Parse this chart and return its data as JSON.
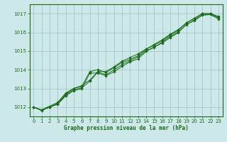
{
  "xlabel": "Graphe pression niveau de la mer (hPa)",
  "ylim": [
    1011.5,
    1017.5
  ],
  "xlim": [
    -0.5,
    23.5
  ],
  "yticks": [
    1012,
    1013,
    1014,
    1015,
    1016,
    1017
  ],
  "xticks": [
    0,
    1,
    2,
    3,
    4,
    5,
    6,
    7,
    8,
    9,
    10,
    11,
    12,
    13,
    14,
    15,
    16,
    17,
    18,
    19,
    20,
    21,
    22,
    23
  ],
  "bg_color": "#cde8e8",
  "line_color": "#1a6b1a",
  "grid_color_minor": "#b8d8d8",
  "grid_color_major": "#9cc4c4",
  "series": [
    [
      1012.0,
      1011.85,
      1012.0,
      1012.2,
      1012.7,
      1013.0,
      1013.1,
      1013.9,
      1014.0,
      1013.85,
      1014.1,
      1014.4,
      1014.55,
      1014.75,
      1015.1,
      1015.3,
      1015.55,
      1015.85,
      1016.1,
      1016.5,
      1016.75,
      1017.0,
      1017.0,
      1016.85
    ],
    [
      1012.0,
      1011.85,
      1012.05,
      1012.25,
      1012.75,
      1013.0,
      1013.15,
      1013.45,
      1013.9,
      1013.9,
      1014.15,
      1014.45,
      1014.65,
      1014.85,
      1015.1,
      1015.35,
      1015.6,
      1015.9,
      1016.15,
      1016.5,
      1016.75,
      1017.0,
      1017.0,
      1016.8
    ],
    [
      1012.0,
      1011.82,
      1012.0,
      1012.15,
      1012.6,
      1012.88,
      1012.98,
      1013.82,
      1013.82,
      1013.68,
      1013.88,
      1014.18,
      1014.42,
      1014.58,
      1014.98,
      1015.22,
      1015.42,
      1015.72,
      1015.98,
      1016.42,
      1016.62,
      1016.92,
      1016.95,
      1016.72
    ],
    [
      1012.0,
      1011.83,
      1012.0,
      1012.18,
      1012.65,
      1012.93,
      1013.03,
      1013.38,
      1013.88,
      1013.73,
      1013.98,
      1014.28,
      1014.48,
      1014.68,
      1015.02,
      1015.18,
      1015.48,
      1015.78,
      1016.02,
      1016.4,
      1016.68,
      1016.93,
      1016.95,
      1016.75
    ]
  ]
}
